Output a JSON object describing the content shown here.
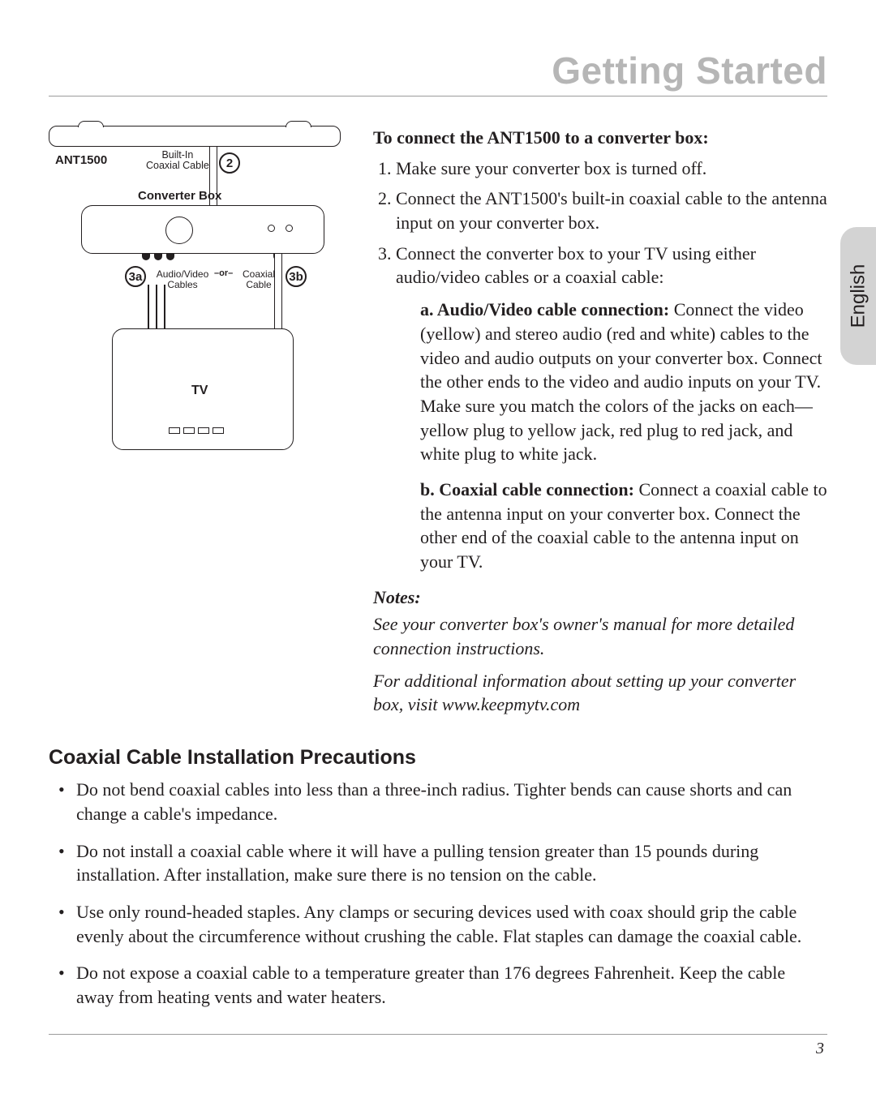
{
  "page": {
    "title": "Getting Started",
    "number": "3",
    "tab_label": "English"
  },
  "diagram": {
    "ant_label": "ANT1500",
    "builtin_line1": "Built-In",
    "builtin_line2": "Coaxial Cable",
    "converter_label": "Converter Box",
    "tv_label": "TV",
    "callout_2": "2",
    "callout_3a": "3a",
    "callout_3b": "3b",
    "av_line1": "Audio/Video",
    "av_line2": "Cables",
    "or_label": "–or–",
    "coax_line1": "Coaxial",
    "coax_line2": "Cable",
    "colors": {
      "stroke": "#231f20",
      "bg": "#ffffff"
    }
  },
  "instructions": {
    "heading": "To connect the ANT1500 to a converter box:",
    "step1": "Make sure your converter box is turned off.",
    "step2": "Connect the ANT1500's built-in coaxial cable to the antenna input on your converter box.",
    "step3": "Connect the converter box to your TV using either audio/video cables or a coaxial cable:",
    "sub_a_bold": "a. Audio/Video cable connection: ",
    "sub_a": "Connect the video (yellow) and stereo audio (red and white) cables to the video and audio outputs on your converter box. Connect the other ends to the video and audio inputs on your TV. Make sure you match the colors of the jacks on each—yellow plug to yellow jack, red plug to red jack, and white plug to white jack.",
    "sub_b_bold": "b. Coaxial cable connection: ",
    "sub_b": "Connect a coaxial cable to the antenna input on your converter box. Connect the other end of the coaxial cable to the antenna input on your TV.",
    "notes_heading": "Notes:",
    "note1": "See your converter box's owner's manual for more detailed connection instructions.",
    "note2": "For additional information about setting up your converter box, visit www.keepmytv.com"
  },
  "precautions": {
    "heading": "Coaxial Cable Installation Precautions",
    "b1": "Do not bend coaxial cables into less than a three-inch radius. Tighter bends can cause shorts and can change a cable's impedance.",
    "b2": "Do not install a coaxial cable where it will have a pulling tension greater than 15 pounds during installation. After installation, make sure there is no tension on the cable.",
    "b3": "Use only round-headed staples. Any clamps or securing devices used with coax should grip the cable evenly about the circumference without crushing the cable. Flat staples can damage the coaxial cable.",
    "b4": "Do not expose a coaxial cable to a temperature greater than 176 degrees Fahrenheit. Keep the cable away from heating vents and water heaters."
  },
  "style": {
    "title_color": "#b6b6b6",
    "rule_color": "#9b9b9b",
    "tab_bg": "#d3d3d3",
    "body_font": "Georgia",
    "heading_font": "Arial",
    "title_size_pt": 34,
    "body_size_pt": 16
  }
}
